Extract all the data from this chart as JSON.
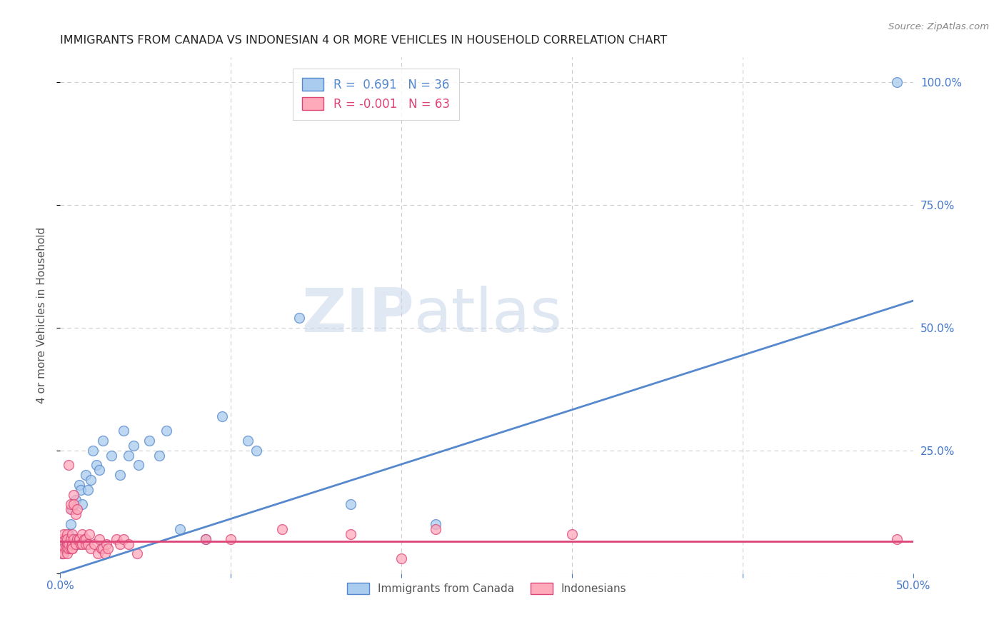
{
  "title": "IMMIGRANTS FROM CANADA VS INDONESIAN 4 OR MORE VEHICLES IN HOUSEHOLD CORRELATION CHART",
  "source": "Source: ZipAtlas.com",
  "ylabel": "4 or more Vehicles in Household",
  "xlim": [
    0.0,
    0.5
  ],
  "ylim": [
    0.0,
    1.05
  ],
  "xticks": [
    0.0,
    0.1,
    0.2,
    0.3,
    0.4,
    0.5
  ],
  "yticks": [
    0.0,
    0.25,
    0.5,
    0.75,
    1.0
  ],
  "xticklabels": [
    "0.0%",
    "",
    "",
    "",
    "",
    "50.0%"
  ],
  "yticklabels_right": [
    "",
    "25.0%",
    "50.0%",
    "75.0%",
    "100.0%"
  ],
  "legend_entries": [
    {
      "label": "R =  0.691   N = 36",
      "color": "#6699cc"
    },
    {
      "label": "R = -0.001   N = 63",
      "color": "#ff99aa"
    }
  ],
  "canada_points": [
    [
      0.001,
      0.04
    ],
    [
      0.003,
      0.06
    ],
    [
      0.004,
      0.05
    ],
    [
      0.005,
      0.08
    ],
    [
      0.006,
      0.1
    ],
    [
      0.007,
      0.13
    ],
    [
      0.009,
      0.15
    ],
    [
      0.01,
      0.06
    ],
    [
      0.011,
      0.18
    ],
    [
      0.012,
      0.17
    ],
    [
      0.013,
      0.14
    ],
    [
      0.015,
      0.2
    ],
    [
      0.016,
      0.17
    ],
    [
      0.018,
      0.19
    ],
    [
      0.019,
      0.25
    ],
    [
      0.021,
      0.22
    ],
    [
      0.023,
      0.21
    ],
    [
      0.025,
      0.27
    ],
    [
      0.03,
      0.24
    ],
    [
      0.035,
      0.2
    ],
    [
      0.037,
      0.29
    ],
    [
      0.04,
      0.24
    ],
    [
      0.043,
      0.26
    ],
    [
      0.046,
      0.22
    ],
    [
      0.052,
      0.27
    ],
    [
      0.058,
      0.24
    ],
    [
      0.062,
      0.29
    ],
    [
      0.07,
      0.09
    ],
    [
      0.085,
      0.07
    ],
    [
      0.095,
      0.32
    ],
    [
      0.11,
      0.27
    ],
    [
      0.115,
      0.25
    ],
    [
      0.14,
      0.52
    ],
    [
      0.17,
      0.14
    ],
    [
      0.22,
      0.1
    ],
    [
      0.49,
      1.0
    ]
  ],
  "indonesia_points": [
    [
      0.001,
      0.04
    ],
    [
      0.001,
      0.07
    ],
    [
      0.002,
      0.05
    ],
    [
      0.002,
      0.08
    ],
    [
      0.002,
      0.04
    ],
    [
      0.003,
      0.07
    ],
    [
      0.003,
      0.05
    ],
    [
      0.003,
      0.07
    ],
    [
      0.004,
      0.06
    ],
    [
      0.004,
      0.08
    ],
    [
      0.004,
      0.05
    ],
    [
      0.004,
      0.04
    ],
    [
      0.004,
      0.07
    ],
    [
      0.005,
      0.05
    ],
    [
      0.005,
      0.06
    ],
    [
      0.005,
      0.22
    ],
    [
      0.006,
      0.05
    ],
    [
      0.006,
      0.07
    ],
    [
      0.006,
      0.13
    ],
    [
      0.006,
      0.14
    ],
    [
      0.007,
      0.05
    ],
    [
      0.007,
      0.06
    ],
    [
      0.007,
      0.08
    ],
    [
      0.007,
      0.05
    ],
    [
      0.008,
      0.16
    ],
    [
      0.008,
      0.07
    ],
    [
      0.008,
      0.14
    ],
    [
      0.009,
      0.12
    ],
    [
      0.009,
      0.06
    ],
    [
      0.01,
      0.07
    ],
    [
      0.01,
      0.13
    ],
    [
      0.011,
      0.07
    ],
    [
      0.011,
      0.07
    ],
    [
      0.012,
      0.06
    ],
    [
      0.013,
      0.06
    ],
    [
      0.013,
      0.08
    ],
    [
      0.014,
      0.07
    ],
    [
      0.015,
      0.06
    ],
    [
      0.015,
      0.07
    ],
    [
      0.016,
      0.06
    ],
    [
      0.017,
      0.08
    ],
    [
      0.018,
      0.05
    ],
    [
      0.02,
      0.06
    ],
    [
      0.022,
      0.04
    ],
    [
      0.023,
      0.07
    ],
    [
      0.024,
      0.05
    ],
    [
      0.025,
      0.05
    ],
    [
      0.026,
      0.04
    ],
    [
      0.027,
      0.06
    ],
    [
      0.028,
      0.05
    ],
    [
      0.033,
      0.07
    ],
    [
      0.035,
      0.06
    ],
    [
      0.037,
      0.07
    ],
    [
      0.04,
      0.06
    ],
    [
      0.045,
      0.04
    ],
    [
      0.085,
      0.07
    ],
    [
      0.1,
      0.07
    ],
    [
      0.13,
      0.09
    ],
    [
      0.17,
      0.08
    ],
    [
      0.2,
      0.03
    ],
    [
      0.22,
      0.09
    ],
    [
      0.3,
      0.08
    ],
    [
      0.49,
      0.07
    ]
  ],
  "canada_line_x": [
    0.0,
    0.5
  ],
  "canada_line_y": [
    0.0,
    0.555
  ],
  "indonesia_line_x": [
    0.0,
    0.5
  ],
  "indonesia_line_y": [
    0.065,
    0.065
  ],
  "canada_color": "#5588cc",
  "canada_face": "#aaccee",
  "indonesia_color": "#dd4477",
  "indonesia_face": "#ffaabb",
  "background_color": "#ffffff",
  "watermark_zip": "ZIP",
  "watermark_atlas": "atlas",
  "title_fontsize": 11.5,
  "axis_color": "#4477cc",
  "grid_color": "#cccccc"
}
